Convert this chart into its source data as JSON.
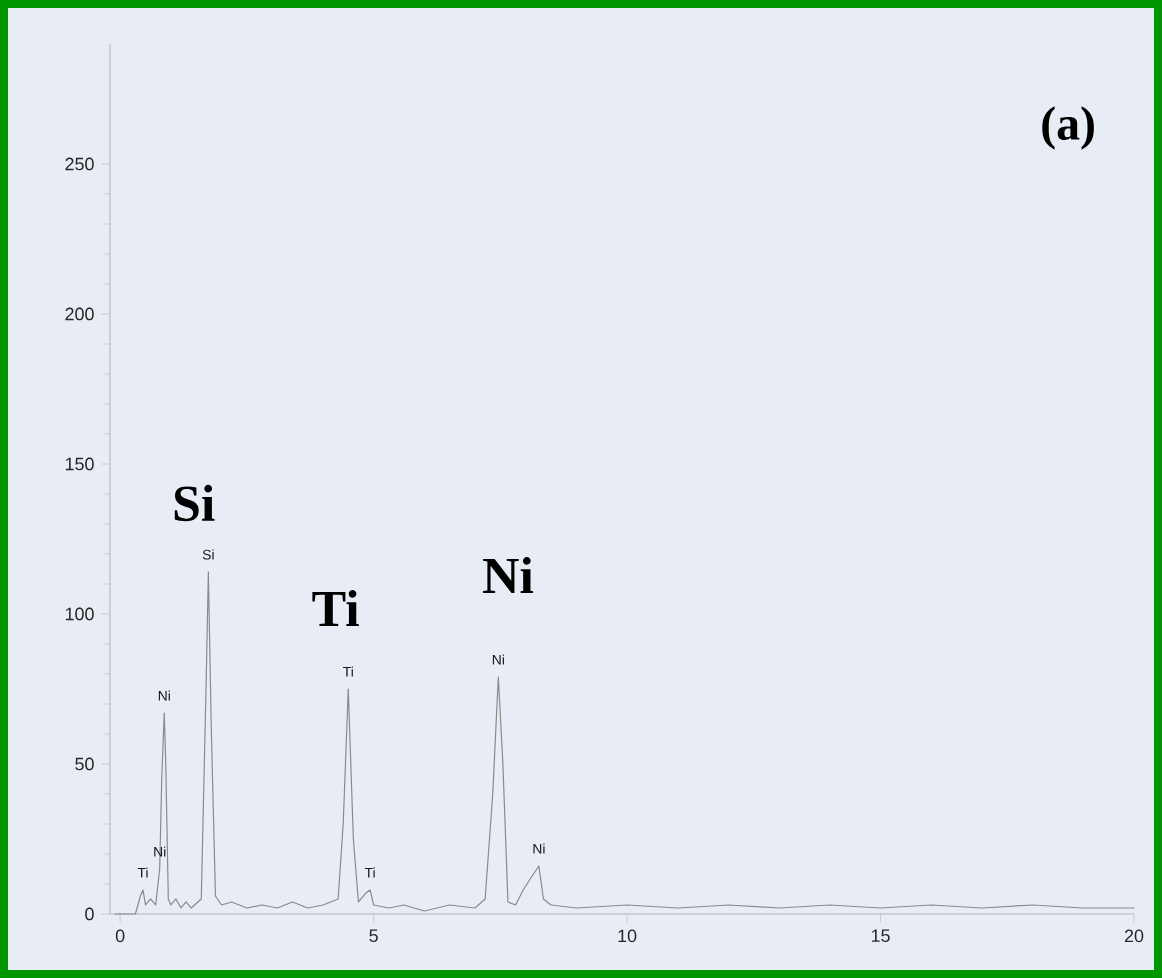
{
  "chart_data": {
    "type": "line",
    "series": [
      {
        "color": "#8a8a8a",
        "x": [
          -0.1,
          0.3,
          0.4,
          0.45,
          0.5,
          0.6,
          0.7,
          0.78,
          0.82,
          0.87,
          0.9,
          0.95,
          1.0,
          1.1,
          1.2,
          1.3,
          1.4,
          1.6,
          1.7,
          1.74,
          1.8,
          1.88,
          2.0,
          2.2,
          2.5,
          2.8,
          3.1,
          3.4,
          3.7,
          4.0,
          4.3,
          4.4,
          4.5,
          4.6,
          4.7,
          4.85,
          4.93,
          5.0,
          5.3,
          5.6,
          6.0,
          6.5,
          7.0,
          7.2,
          7.35,
          7.46,
          7.55,
          7.65,
          7.8,
          7.95,
          8.1,
          8.26,
          8.35,
          8.5,
          9.0,
          10,
          11,
          12,
          13,
          14,
          15,
          16,
          17,
          18,
          19,
          20
        ],
        "values": [
          0,
          0,
          6,
          8,
          3,
          5,
          3,
          15,
          45,
          67,
          50,
          5,
          3,
          5,
          2,
          4,
          2,
          5,
          80,
          114,
          60,
          6,
          3,
          4,
          2,
          3,
          2,
          4,
          2,
          3,
          5,
          30,
          75,
          25,
          4,
          7,
          8,
          3,
          2,
          3,
          1,
          3,
          2,
          5,
          40,
          79,
          50,
          4,
          3,
          8,
          12,
          16,
          5,
          3,
          2,
          3,
          2,
          3,
          2,
          3,
          2,
          3,
          2,
          3,
          2,
          2
        ]
      }
    ],
    "xlim": [
      -0.2,
      20
    ],
    "ylim": [
      0,
      290
    ],
    "xticks": [
      0,
      5,
      10,
      15,
      20
    ],
    "yticks": [
      0,
      50,
      100,
      150,
      200,
      250
    ],
    "grid": false,
    "marker": "none",
    "line_style": "solid",
    "annotations": [
      "(a)",
      "Si",
      "Ti",
      "Ni",
      {
        "text": "Ti",
        "x": 0.45,
        "y": 8
      },
      {
        "text": "Ni",
        "x": 0.78,
        "y": 15
      },
      {
        "text": "Ni",
        "x": 0.87,
        "y": 67
      },
      {
        "text": "Si",
        "x": 1.74,
        "y": 114
      },
      {
        "text": "Ti",
        "x": 4.5,
        "y": 75
      },
      {
        "text": "Ti",
        "x": 4.93,
        "y": 8
      },
      {
        "text": "Ni",
        "x": 7.46,
        "y": 79
      },
      {
        "text": "Ni",
        "x": 8.26,
        "y": 16
      }
    ]
  }
}
